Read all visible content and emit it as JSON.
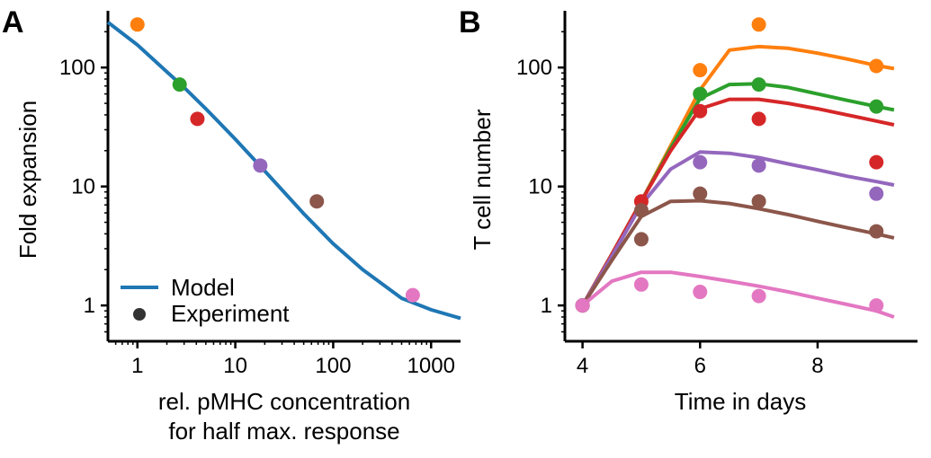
{
  "chart_data": [
    {
      "panel": "A",
      "type": "scatter",
      "xscale": "log",
      "yscale": "log",
      "xlim": [
        0.5,
        2000
      ],
      "ylim": [
        0.5,
        300
      ],
      "xticks": [
        1,
        10,
        100,
        1000
      ],
      "xtick_labels": [
        "1",
        "10",
        "100",
        "1000"
      ],
      "yticks": [
        1,
        10,
        100
      ],
      "ytick_labels": [
        "1",
        "10",
        "100"
      ],
      "xlabel": [
        "rel. pMHC concentration",
        "for half max. response"
      ],
      "ylabel": "Fold expansion",
      "legend": {
        "placement": "lower-left",
        "entries": [
          "Model",
          "Experiment"
        ]
      },
      "model": {
        "name": "Model",
        "color": "#1f77b4",
        "x": [
          0.5,
          1,
          2,
          3,
          5,
          10,
          20,
          50,
          100,
          200,
          500,
          1000,
          2000
        ],
        "y": [
          240,
          155,
          92,
          68,
          45,
          25,
          13.5,
          5.9,
          3.3,
          2.0,
          1.15,
          0.92,
          0.78
        ]
      },
      "experiment": {
        "name": "Experiment",
        "points": [
          {
            "x": 1.0,
            "y": 230,
            "color": "#ff7f0e"
          },
          {
            "x": 2.7,
            "y": 72,
            "color": "#2ca02c"
          },
          {
            "x": 4.1,
            "y": 37,
            "color": "#d62728"
          },
          {
            "x": 18,
            "y": 15,
            "color": "#9467bd"
          },
          {
            "x": 68,
            "y": 7.5,
            "color": "#8c564b"
          },
          {
            "x": 650,
            "y": 1.22,
            "color": "#e377c2"
          }
        ]
      }
    },
    {
      "panel": "B",
      "type": "line",
      "yscale": "log",
      "xlim": [
        3.7,
        9.7
      ],
      "ylim": [
        0.5,
        300
      ],
      "xticks": [
        4,
        6,
        8
      ],
      "xtick_labels": [
        "4",
        "6",
        "8"
      ],
      "yticks": [
        1,
        10,
        100
      ],
      "ytick_labels": [
        "1",
        "10",
        "100"
      ],
      "xlabel": "Time in days",
      "ylabel": "T cell number",
      "series": [
        {
          "color": "#ff7f0e",
          "curve_x": [
            4,
            4.5,
            5,
            5.5,
            6,
            6.5,
            7,
            7.5,
            8,
            8.5,
            9,
            9.3
          ],
          "curve_y": [
            1,
            2.7,
            7.5,
            22,
            65,
            140,
            150,
            145,
            132,
            118,
            104,
            98
          ],
          "points_x": [
            4,
            6,
            7,
            9
          ],
          "points_y": [
            1,
            95,
            230,
            103
          ]
        },
        {
          "color": "#2ca02c",
          "curve_x": [
            4,
            4.5,
            5,
            5.5,
            6,
            6.5,
            7,
            7.5,
            8,
            8.5,
            9,
            9.3
          ],
          "curve_y": [
            1,
            2.7,
            7.5,
            21,
            55,
            72,
            73,
            68,
            60,
            53,
            47,
            44
          ],
          "points_x": [
            4,
            6,
            7,
            9
          ],
          "points_y": [
            1,
            60,
            72,
            47
          ]
        },
        {
          "color": "#d62728",
          "curve_x": [
            4,
            4.5,
            5,
            5.5,
            6,
            6.5,
            7,
            7.5,
            8,
            8.5,
            9,
            9.3
          ],
          "curve_y": [
            1,
            2.7,
            7.5,
            20,
            45,
            54,
            54,
            50,
            45,
            40,
            35.5,
            33
          ],
          "points_x": [
            4,
            5,
            6,
            7,
            9
          ],
          "points_y": [
            1,
            7.5,
            43,
            37,
            16
          ]
        },
        {
          "color": "#9467bd",
          "curve_x": [
            4,
            4.5,
            5,
            5.5,
            6,
            6.5,
            7,
            7.5,
            8,
            8.5,
            9,
            9.3
          ],
          "curve_y": [
            1,
            2.6,
            7,
            14,
            19.5,
            19,
            17.5,
            15.5,
            13.8,
            12.2,
            11,
            10.3
          ],
          "points_x": [
            4,
            6,
            7,
            9
          ],
          "points_y": [
            1,
            16,
            15,
            8.7
          ]
        },
        {
          "color": "#8c564b",
          "curve_x": [
            4,
            4.5,
            5,
            5.5,
            6,
            6.5,
            7,
            7.5,
            8,
            8.5,
            9,
            9.3
          ],
          "curve_y": [
            1,
            2.4,
            5.6,
            7.5,
            7.6,
            7.2,
            6.5,
            5.8,
            5.1,
            4.5,
            4.0,
            3.7
          ],
          "points_x": [
            4,
            5,
            5,
            6,
            7,
            9
          ],
          "points_y": [
            1,
            6.3,
            3.6,
            8.7,
            7.5,
            4.2
          ]
        },
        {
          "color": "#e377c2",
          "curve_x": [
            4,
            4.5,
            5,
            5.5,
            6,
            6.5,
            7,
            7.5,
            8,
            8.5,
            9,
            9.3
          ],
          "curve_y": [
            1,
            1.6,
            1.9,
            1.9,
            1.75,
            1.6,
            1.45,
            1.3,
            1.15,
            1.02,
            0.9,
            0.8
          ],
          "points_x": [
            4,
            5,
            6,
            7,
            9
          ],
          "points_y": [
            1,
            1.5,
            1.3,
            1.2,
            1.0
          ]
        }
      ]
    }
  ]
}
